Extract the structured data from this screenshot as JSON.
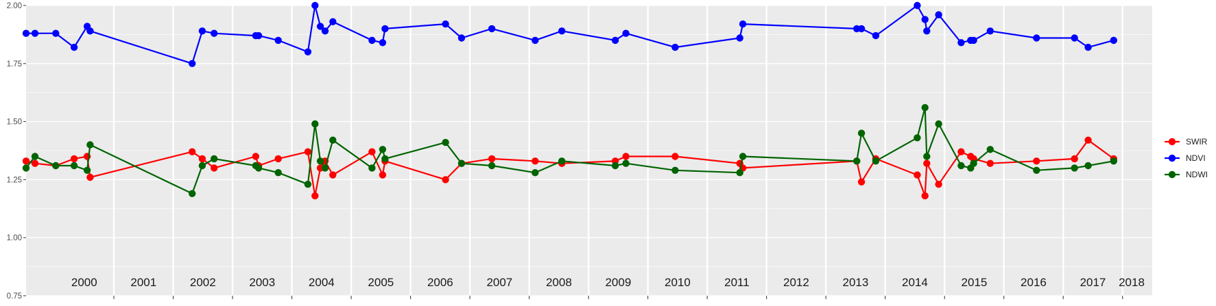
{
  "chart_data": {
    "type": "line",
    "title": "",
    "xlabel": "",
    "ylabel": "",
    "ylim": [
      0.75,
      2.0
    ],
    "y_ticks": [
      "0.75",
      "1.00",
      "1.25",
      "1.50",
      "1.75",
      "2.00"
    ],
    "x_range": [
      1999.52,
      2018.5
    ],
    "years": [
      "2000",
      "2001",
      "2002",
      "2003",
      "2004",
      "2005",
      "2006",
      "2007",
      "2008",
      "2009",
      "2010",
      "2011",
      "2012",
      "2013",
      "2014",
      "2015",
      "2016",
      "2017",
      "2018"
    ],
    "grid": true,
    "legend_position": "right",
    "background": "#ebebeb",
    "series": [
      {
        "name": "SWIR",
        "color": "#ff0000",
        "points": [
          [
            1999.52,
            1.33
          ],
          [
            1999.67,
            1.32
          ],
          [
            2000.02,
            1.31
          ],
          [
            2000.33,
            1.34
          ],
          [
            2000.55,
            1.35
          ],
          [
            2000.6,
            1.26
          ],
          [
            2002.32,
            1.37
          ],
          [
            2002.49,
            1.34
          ],
          [
            2002.69,
            1.3
          ],
          [
            2003.39,
            1.35
          ],
          [
            2003.44,
            1.31
          ],
          [
            2003.77,
            1.34
          ],
          [
            2004.27,
            1.37
          ],
          [
            2004.39,
            1.18
          ],
          [
            2004.48,
            1.3
          ],
          [
            2004.56,
            1.33
          ],
          [
            2004.69,
            1.27
          ],
          [
            2005.35,
            1.37
          ],
          [
            2005.53,
            1.27
          ],
          [
            2005.57,
            1.33
          ],
          [
            2006.59,
            1.25
          ],
          [
            2006.86,
            1.32
          ],
          [
            2007.37,
            1.34
          ],
          [
            2008.1,
            1.33
          ],
          [
            2008.55,
            1.32
          ],
          [
            2009.45,
            1.33
          ],
          [
            2009.63,
            1.35
          ],
          [
            2010.46,
            1.35
          ],
          [
            2011.55,
            1.32
          ],
          [
            2011.6,
            1.3
          ],
          [
            2013.52,
            1.33
          ],
          [
            2013.6,
            1.24
          ],
          [
            2013.84,
            1.34
          ],
          [
            2014.54,
            1.27
          ],
          [
            2014.67,
            1.18
          ],
          [
            2014.7,
            1.32
          ],
          [
            2014.9,
            1.23
          ],
          [
            2015.28,
            1.37
          ],
          [
            2015.44,
            1.35
          ],
          [
            2015.49,
            1.34
          ],
          [
            2015.77,
            1.32
          ],
          [
            2016.55,
            1.33
          ],
          [
            2017.19,
            1.34
          ],
          [
            2017.42,
            1.42
          ],
          [
            2017.85,
            1.34
          ]
        ]
      },
      {
        "name": "NDVI",
        "color": "#0000ff",
        "points": [
          [
            1999.52,
            1.88
          ],
          [
            1999.67,
            1.88
          ],
          [
            2000.02,
            1.88
          ],
          [
            2000.33,
            1.82
          ],
          [
            2000.55,
            1.91
          ],
          [
            2000.6,
            1.89
          ],
          [
            2002.32,
            1.75
          ],
          [
            2002.49,
            1.89
          ],
          [
            2002.69,
            1.88
          ],
          [
            2003.39,
            1.87
          ],
          [
            2003.44,
            1.87
          ],
          [
            2003.77,
            1.85
          ],
          [
            2004.27,
            1.8
          ],
          [
            2004.39,
            2.0
          ],
          [
            2004.48,
            1.91
          ],
          [
            2004.56,
            1.89
          ],
          [
            2004.69,
            1.93
          ],
          [
            2005.35,
            1.85
          ],
          [
            2005.53,
            1.84
          ],
          [
            2005.57,
            1.9
          ],
          [
            2006.59,
            1.92
          ],
          [
            2006.86,
            1.86
          ],
          [
            2007.37,
            1.9
          ],
          [
            2008.1,
            1.85
          ],
          [
            2008.55,
            1.89
          ],
          [
            2009.45,
            1.85
          ],
          [
            2009.63,
            1.88
          ],
          [
            2010.46,
            1.82
          ],
          [
            2011.55,
            1.86
          ],
          [
            2011.6,
            1.92
          ],
          [
            2013.52,
            1.9
          ],
          [
            2013.6,
            1.9
          ],
          [
            2013.84,
            1.87
          ],
          [
            2014.54,
            2.0
          ],
          [
            2014.67,
            1.94
          ],
          [
            2014.7,
            1.89
          ],
          [
            2014.9,
            1.96
          ],
          [
            2015.28,
            1.84
          ],
          [
            2015.44,
            1.85
          ],
          [
            2015.49,
            1.85
          ],
          [
            2015.77,
            1.89
          ],
          [
            2016.55,
            1.86
          ],
          [
            2017.19,
            1.86
          ],
          [
            2017.42,
            1.82
          ],
          [
            2017.85,
            1.85
          ]
        ]
      },
      {
        "name": "NDWI",
        "color": "#006400",
        "points": [
          [
            1999.52,
            1.3
          ],
          [
            1999.67,
            1.35
          ],
          [
            2000.02,
            1.31
          ],
          [
            2000.33,
            1.31
          ],
          [
            2000.55,
            1.29
          ],
          [
            2000.6,
            1.4
          ],
          [
            2002.32,
            1.19
          ],
          [
            2002.49,
            1.31
          ],
          [
            2002.69,
            1.34
          ],
          [
            2003.39,
            1.31
          ],
          [
            2003.44,
            1.3
          ],
          [
            2003.77,
            1.28
          ],
          [
            2004.27,
            1.23
          ],
          [
            2004.39,
            1.49
          ],
          [
            2004.48,
            1.33
          ],
          [
            2004.56,
            1.3
          ],
          [
            2004.69,
            1.42
          ],
          [
            2005.35,
            1.3
          ],
          [
            2005.53,
            1.38
          ],
          [
            2005.57,
            1.34
          ],
          [
            2006.59,
            1.41
          ],
          [
            2006.86,
            1.32
          ],
          [
            2007.37,
            1.31
          ],
          [
            2008.1,
            1.28
          ],
          [
            2008.55,
            1.33
          ],
          [
            2009.45,
            1.31
          ],
          [
            2009.63,
            1.32
          ],
          [
            2010.46,
            1.29
          ],
          [
            2011.55,
            1.28
          ],
          [
            2011.6,
            1.35
          ],
          [
            2013.52,
            1.33
          ],
          [
            2013.6,
            1.45
          ],
          [
            2013.84,
            1.33
          ],
          [
            2014.54,
            1.43
          ],
          [
            2014.67,
            1.56
          ],
          [
            2014.7,
            1.35
          ],
          [
            2014.9,
            1.49
          ],
          [
            2015.28,
            1.31
          ],
          [
            2015.44,
            1.3
          ],
          [
            2015.49,
            1.32
          ],
          [
            2015.77,
            1.38
          ],
          [
            2016.55,
            1.29
          ],
          [
            2017.19,
            1.3
          ],
          [
            2017.42,
            1.31
          ],
          [
            2017.85,
            1.33
          ]
        ]
      }
    ]
  }
}
